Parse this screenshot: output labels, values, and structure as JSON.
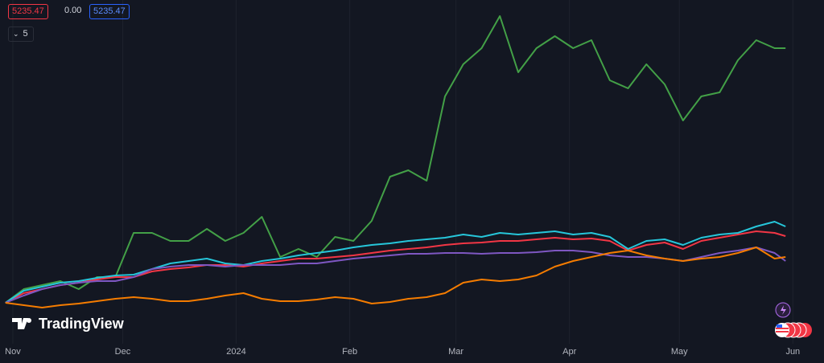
{
  "chart_data": {
    "type": "line",
    "price_labels": [
      "5235.47",
      "0.00",
      "5235.47"
    ],
    "series_count_label": "5",
    "watermark": "TradingView",
    "x": [
      -2,
      3,
      8,
      13,
      18,
      23,
      28,
      33,
      38,
      43,
      48,
      53,
      58,
      63,
      68,
      73,
      78,
      83,
      88,
      93,
      98,
      103,
      108,
      113,
      118,
      123,
      128,
      133,
      138,
      143,
      148,
      153,
      158,
      163,
      168,
      173,
      178,
      183,
      188,
      193,
      198,
      203,
      208,
      211
    ],
    "xlim": [
      -3.5,
      221.5
    ],
    "xticks": [
      {
        "value": 0,
        "label": "Nov"
      },
      {
        "value": 30,
        "label": "Dec"
      },
      {
        "value": 61,
        "label": "2024"
      },
      {
        "value": 92,
        "label": "Feb"
      },
      {
        "value": 121,
        "label": "Mar"
      },
      {
        "value": 152,
        "label": "Apr"
      },
      {
        "value": 182,
        "label": "May"
      },
      {
        "value": 213,
        "label": "Jun"
      }
    ],
    "ylim": [
      0,
      428
    ],
    "grid": true,
    "series": [
      {
        "color": "#43a047",
        "values": [
          51,
          68,
          73,
          78,
          68,
          83,
          83,
          138,
          138,
          128,
          128,
          143,
          128,
          138,
          158,
          108,
          118,
          108,
          133,
          128,
          153,
          208,
          216,
          203,
          308,
          348,
          368,
          408,
          338,
          368,
          383,
          368,
          378,
          328,
          318,
          348,
          323,
          278,
          308,
          313,
          353,
          378,
          368,
          368
        ]
      },
      {
        "color": "#f23645",
        "values": [
          51,
          63,
          68,
          73,
          76,
          80,
          83,
          83,
          90,
          93,
          95,
          98,
          98,
          96,
          100,
          103,
          106,
          106,
          108,
          110,
          113,
          116,
          118,
          120,
          123,
          125,
          126,
          128,
          128,
          130,
          132,
          130,
          131,
          128,
          116,
          123,
          126,
          118,
          128,
          132,
          136,
          140,
          138,
          134
        ]
      },
      {
        "color": "#26c6da",
        "values": [
          51,
          66,
          71,
          76,
          78,
          82,
          85,
          86,
          93,
          100,
          103,
          106,
          100,
          98,
          103,
          106,
          110,
          113,
          116,
          120,
          123,
          125,
          128,
          130,
          132,
          136,
          133,
          138,
          136,
          138,
          140,
          136,
          138,
          133,
          118,
          128,
          130,
          123,
          132,
          136,
          138,
          146,
          152,
          146
        ]
      },
      {
        "color": "#7e57c2",
        "values": [
          51,
          60,
          68,
          73,
          76,
          78,
          78,
          83,
          93,
          96,
          98,
          98,
          96,
          98,
          98,
          98,
          100,
          100,
          103,
          106,
          108,
          110,
          112,
          112,
          113,
          113,
          112,
          113,
          113,
          114,
          116,
          116,
          114,
          110,
          108,
          108,
          106,
          103,
          108,
          113,
          116,
          120,
          113,
          103
        ]
      },
      {
        "color": "#f57c00",
        "values": [
          51,
          48,
          45,
          48,
          50,
          53,
          56,
          58,
          56,
          53,
          53,
          56,
          60,
          63,
          56,
          53,
          53,
          55,
          58,
          56,
          50,
          52,
          56,
          58,
          63,
          76,
          80,
          78,
          80,
          85,
          96,
          103,
          108,
          113,
          116,
          110,
          106,
          103,
          106,
          108,
          113,
          120,
          106,
          108
        ]
      }
    ]
  }
}
